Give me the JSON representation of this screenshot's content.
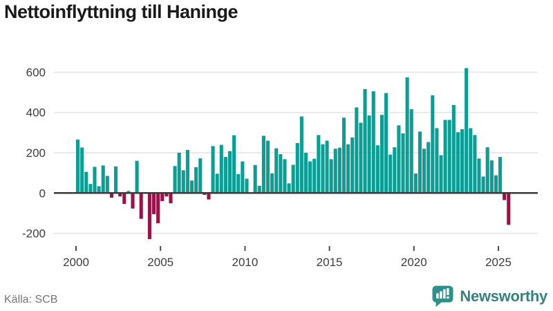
{
  "header": {
    "title": "Nettoinflyttning till Haninge"
  },
  "footer": {
    "source": "Källa: SCB",
    "brand": "Newsworthy"
  },
  "colors": {
    "positive": "#0b9e94",
    "negative": "#9d1147",
    "grid": "#e3e3e3",
    "zero_line": "#3a3a3a",
    "tick_mark": "#4a4a4a",
    "axis_text": "#3d3d3d",
    "title_text": "#1a1a1a",
    "source_text": "#75757d",
    "brand_icon": "#2f8f8a",
    "brand_text": "#36827f"
  },
  "chart_data": {
    "type": "bar",
    "title": "Nettoinflyttning till Haninge",
    "start_quarter": "2000-Q1",
    "frequency": "quarterly",
    "values": [
      265,
      226,
      105,
      45,
      130,
      34,
      137,
      85,
      -23,
      132,
      -17,
      -54,
      10,
      -77,
      160,
      -128,
      0,
      -229,
      -105,
      -150,
      -40,
      -17,
      -51,
      134,
      200,
      113,
      214,
      62,
      128,
      172,
      -9,
      -32,
      233,
      96,
      239,
      179,
      208,
      287,
      94,
      157,
      71,
      2,
      139,
      36,
      284,
      260,
      98,
      222,
      193,
      168,
      48,
      140,
      248,
      380,
      200,
      157,
      170,
      288,
      242,
      260,
      168,
      220,
      225,
      374,
      242,
      276,
      425,
      349,
      516,
      385,
      505,
      237,
      388,
      496,
      191,
      227,
      336,
      296,
      574,
      416,
      97,
      305,
      220,
      253,
      485,
      322,
      188,
      363,
      363,
      437,
      302,
      317,
      620,
      322,
      288,
      171,
      82,
      227,
      162,
      88,
      179,
      -35,
      -158
    ],
    "y_ticks": [
      600,
      400,
      200,
      0,
      -200
    ],
    "y_tick_labels": [
      "600",
      "400",
      "200",
      "0",
      "-200"
    ],
    "x_tick_years": [
      2000,
      2005,
      2010,
      2015,
      2020,
      2025
    ],
    "ylim": [
      -250,
      650
    ],
    "grid": true,
    "legend": false
  }
}
